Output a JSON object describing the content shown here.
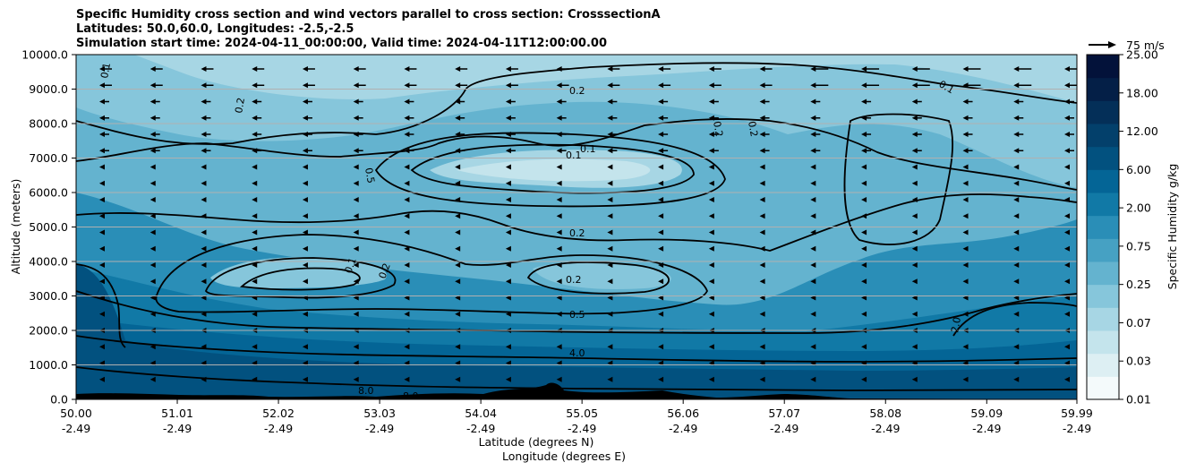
{
  "chart_data": {
    "type": "contour",
    "title_lines": [
      "Specific Humidity cross section and wind vectors parallel to cross section: CrosssectionA",
      "Latitudes: 50.0,60.0, Longitudes: -2.5,-2.5",
      "Simulation start time: 2024-04-11_00:00:00, Valid time: 2024-04-11T12:00:00.00"
    ],
    "ylabel": "Altitude (meters)",
    "xlabel_lines": [
      "Latitude (degrees N)",
      "Longitude (degrees E)"
    ],
    "ylim": [
      0,
      10000
    ],
    "xlim": [
      50.0,
      59.99
    ],
    "y_ticks": [
      "0.0",
      "1000.0",
      "2000.0",
      "3000.0",
      "4000.0",
      "5000.0",
      "6000.0",
      "7000.0",
      "8000.0",
      "9000.0",
      "10000.0"
    ],
    "x_ticks_lat": [
      "50.00",
      "51.01",
      "52.02",
      "53.03",
      "54.04",
      "55.05",
      "56.06",
      "57.07",
      "58.08",
      "59.09",
      "59.99"
    ],
    "x_ticks_lon": [
      "-2.49",
      "-2.49",
      "-2.49",
      "-2.49",
      "-2.49",
      "-2.49",
      "-2.49",
      "-2.49",
      "-2.49",
      "-2.49",
      "-2.49"
    ],
    "grid": true,
    "colorbar": {
      "label": "Specific Humidity g/kg",
      "ticks": [
        "0.01",
        "0.03",
        "0.07",
        "0.25",
        "0.75",
        "2.00",
        "6.00",
        "12.00",
        "18.00",
        "25.00"
      ],
      "colors": [
        "#f4fafb",
        "#ddeff3",
        "#c4e4ec",
        "#a7d6e4",
        "#86c6db",
        "#64b3cf",
        "#46a1c3",
        "#2a8eb7",
        "#1179a6",
        "#046596",
        "#02517f",
        "#03406b",
        "#042f58",
        "#041f47",
        "#03123a"
      ]
    },
    "quiver_key": "75 m/s",
    "contour_labels": [
      "0.1",
      "0.2",
      "0.5",
      "4.0",
      "8.0",
      "2.0"
    ],
    "wind_direction": "southward (negative along cross section)"
  }
}
